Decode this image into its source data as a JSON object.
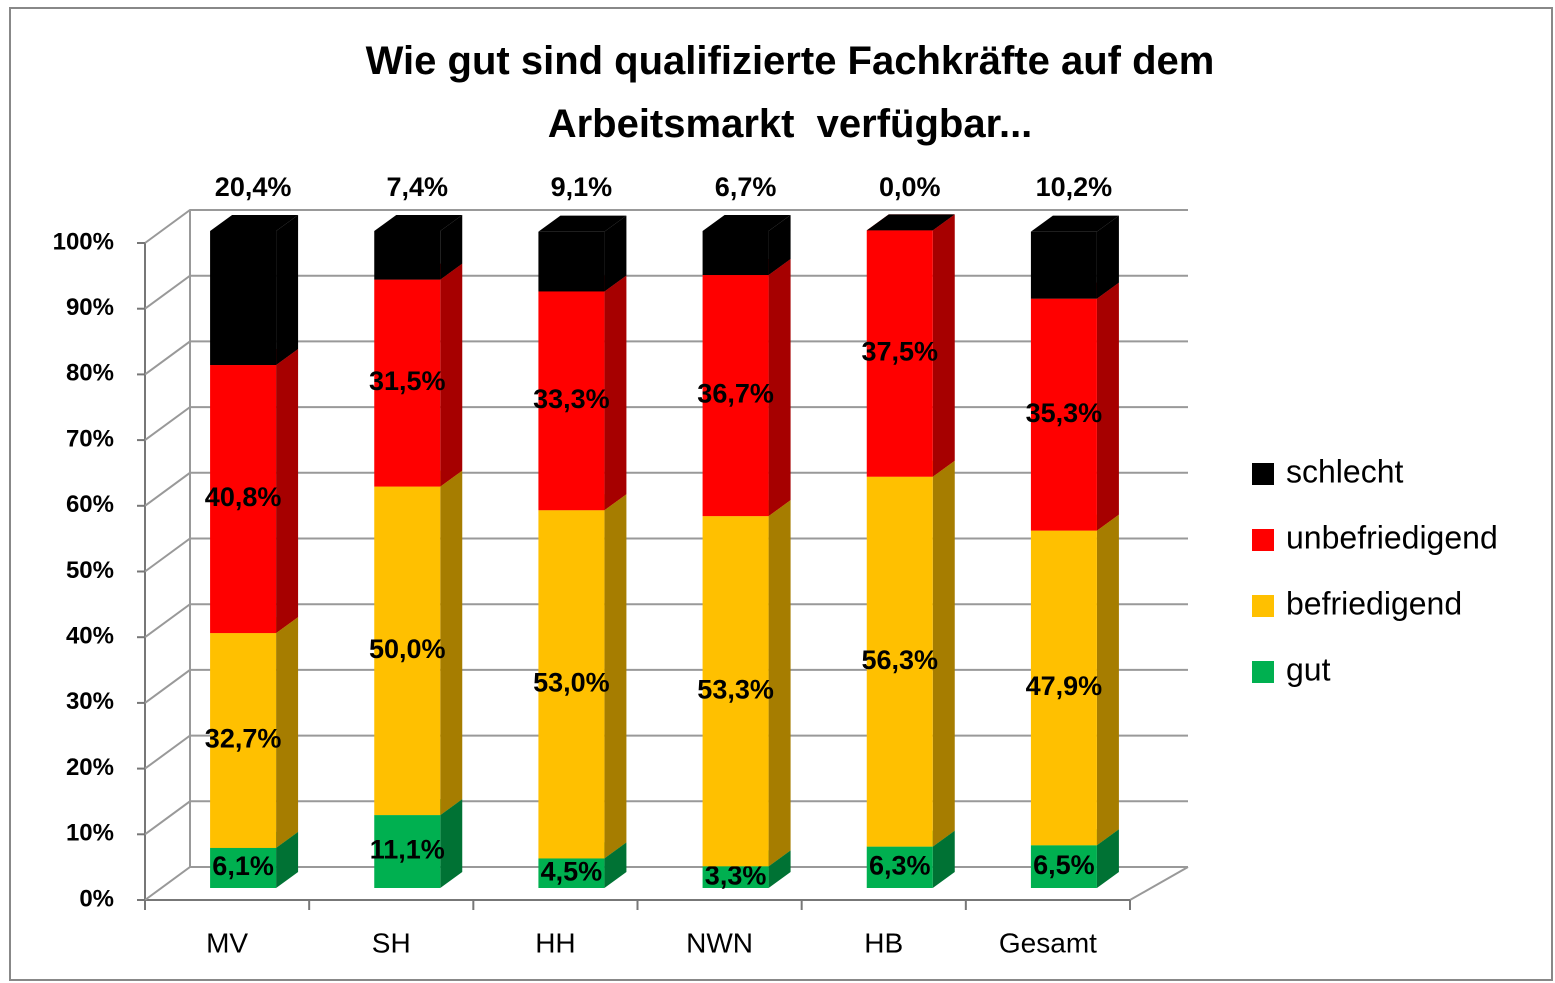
{
  "chart_data": {
    "type": "bar3d_stacked",
    "title": "Wie gut sind qualifizierte Fachkräfte auf dem Arbeitsmarkt  verfügbar...",
    "categories": [
      "MV",
      "SH",
      "HH",
      "NWN",
      "HB",
      "Gesamt"
    ],
    "series": [
      {
        "name": "gut",
        "color": "#00b050",
        "values": [
          6.1,
          11.1,
          4.5,
          3.3,
          6.3,
          6.5
        ],
        "value_labels": [
          "6,1%",
          "11,1%",
          "4,5%",
          "3,3%",
          "6,3%",
          "6,5%"
        ]
      },
      {
        "name": "befriedigend",
        "color": "#ffc000",
        "values": [
          32.7,
          50.0,
          53.0,
          53.3,
          56.3,
          47.9
        ],
        "value_labels": [
          "32,7%",
          "50,0%",
          "53,0%",
          "53,3%",
          "56,3%",
          "47,9%"
        ]
      },
      {
        "name": "unbefriedigend",
        "color": "#ff0000",
        "values": [
          40.8,
          31.5,
          33.3,
          36.7,
          37.5,
          35.3
        ],
        "value_labels": [
          "40,8%",
          "31,5%",
          "33,3%",
          "36,7%",
          "37,5%",
          "35,3%"
        ]
      },
      {
        "name": "schlecht",
        "color": "#000000",
        "values": [
          20.4,
          7.4,
          9.1,
          6.7,
          0.0,
          10.2
        ],
        "value_labels": [
          "20,4%",
          "7,4%",
          "9,1%",
          "6,7%",
          "0,0%",
          "10,2%"
        ]
      }
    ],
    "ylim": [
      0,
      100
    ],
    "yticks": [
      {
        "value": 0,
        "label": "0%"
      },
      {
        "value": 10,
        "label": "10%"
      },
      {
        "value": 20,
        "label": "20%"
      },
      {
        "value": 30,
        "label": "30%"
      },
      {
        "value": 40,
        "label": "40%"
      },
      {
        "value": 50,
        "label": "50%"
      },
      {
        "value": 60,
        "label": "60%"
      },
      {
        "value": 70,
        "label": "70%"
      },
      {
        "value": 80,
        "label": "80%"
      },
      {
        "value": 90,
        "label": "90%"
      },
      {
        "value": 100,
        "label": "100%"
      }
    ],
    "grid": true,
    "legend": "right"
  }
}
